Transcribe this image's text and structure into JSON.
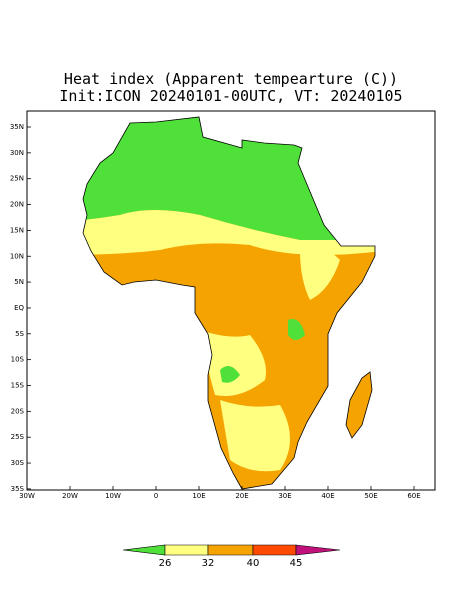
{
  "header": {
    "title": "Heat index (Apparent tempearture (C))",
    "subtitle": "Init:ICON 20240101-00UTC, VT: 20240105"
  },
  "map": {
    "lat_labels": [
      "35N",
      "30N",
      "25N",
      "20N",
      "15N",
      "10N",
      "5N",
      "EQ",
      "5S",
      "10S",
      "15S",
      "20S",
      "25S",
      "30S",
      "35S"
    ],
    "lon_labels": [
      "30W",
      "20W",
      "10W",
      "0",
      "10E",
      "20E",
      "30E",
      "40E",
      "50E",
      "60E"
    ]
  },
  "colorbar": {
    "labels": [
      26,
      32,
      40,
      45
    ],
    "colors": [
      "#4fe03a",
      "#ffff80",
      "#f5a300",
      "#ff4a00",
      "#c0107a"
    ]
  }
}
